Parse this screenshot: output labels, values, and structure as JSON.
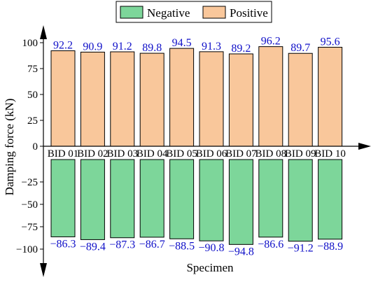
{
  "chart_data": {
    "type": "bar",
    "xlabel": "Specimen",
    "ylabel": "Damping force (kN)",
    "ylim": [
      -100,
      100
    ],
    "yticks": [
      -100,
      -75,
      -50,
      -25,
      0,
      25,
      50,
      75,
      100
    ],
    "categories": [
      "BID 01",
      "BID 02",
      "BID 03",
      "BID 04",
      "BID 05",
      "BID 06",
      "BID 07",
      "BID 08",
      "BID 09",
      "BID 10"
    ],
    "series": [
      {
        "name": "Negative",
        "color": "#7dd69a",
        "values": [
          -86.3,
          -89.4,
          -87.3,
          -86.7,
          -88.5,
          -90.8,
          -94.8,
          -86.6,
          -91.2,
          -88.9
        ],
        "labels": [
          "−86.3",
          "−89.4",
          "−87.3",
          "−86.7",
          "−88.5",
          "−90.8",
          "−94.8",
          "−86.6",
          "−91.2",
          "−88.9"
        ]
      },
      {
        "name": "Positive",
        "color": "#f9c79b",
        "values": [
          92.2,
          90.9,
          91.2,
          89.8,
          94.5,
          91.3,
          89.2,
          96.2,
          89.7,
          95.6
        ],
        "labels": [
          "92.2",
          "90.9",
          "91.2",
          "89.8",
          "94.5",
          "91.3",
          "89.2",
          "96.2",
          "89.7",
          "95.6"
        ]
      }
    ],
    "ytick_labels": [
      "−100",
      "−75",
      "−50",
      "−25",
      "0",
      "25",
      "50",
      "75",
      "100"
    ],
    "legend": "top-center",
    "grid": false,
    "label_color": "#1010c8"
  }
}
